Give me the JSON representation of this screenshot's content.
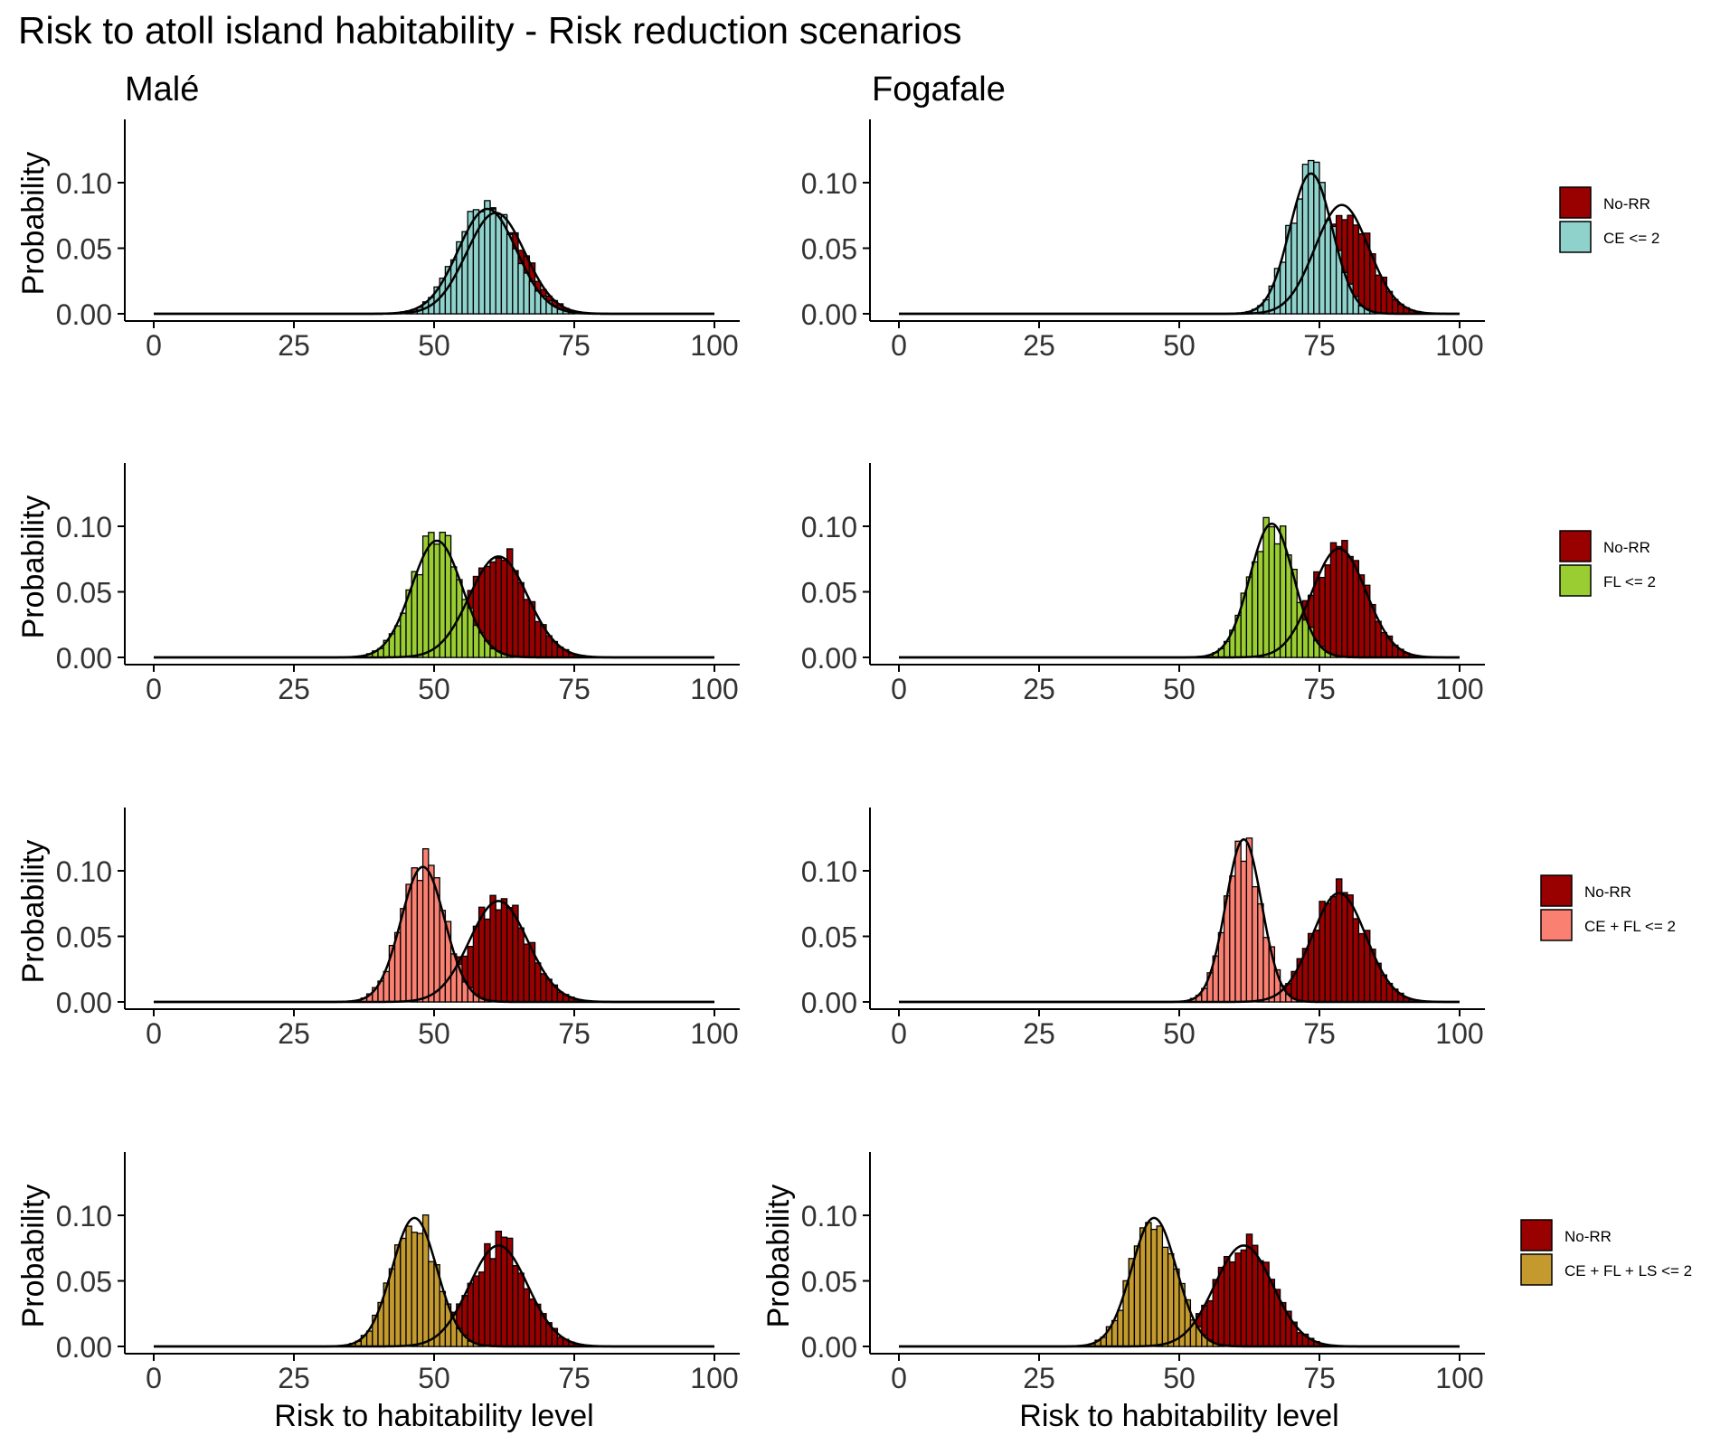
{
  "title": "Risk to atoll island habitability - Risk reduction scenarios",
  "columns": [
    "Malé",
    "Fogafale"
  ],
  "ylabel": "Probability",
  "xlabel": "Risk to habitability level",
  "colors": {
    "no_rr": "#990000",
    "ce": "#8fd1cb",
    "fl": "#9acd32",
    "ce_fl": "#fa8072",
    "ce_fl_ls": "#c49a2f",
    "curve": "#000000"
  },
  "chart_data": [
    {
      "type": "bar",
      "panel": "male-ce",
      "location": "Malé",
      "ylabel": "Probability",
      "xlabel": "",
      "x_ticks": [
        0,
        25,
        50,
        75,
        100
      ],
      "y_ticks": [
        "0.00",
        "0.05",
        "0.10"
      ],
      "xlim": [
        0,
        100
      ],
      "ylim": [
        0,
        0.15
      ],
      "legend": [
        "No-RR",
        "CE <= 2"
      ],
      "series": [
        {
          "name": "No-RR",
          "mean": 61,
          "sd": 5.2,
          "peak": 0.077
        },
        {
          "name": "CE <= 2",
          "mean": 59.5,
          "sd": 5.2,
          "peak": 0.08
        }
      ]
    },
    {
      "type": "bar",
      "panel": "foga-ce",
      "location": "Fogafale",
      "ylabel": "",
      "xlabel": "",
      "x_ticks": [
        0,
        25,
        50,
        75,
        100
      ],
      "y_ticks": [
        "0.00",
        "0.05",
        "0.10"
      ],
      "xlim": [
        0,
        100
      ],
      "ylim": [
        0,
        0.15
      ],
      "legend": [
        "No-RR",
        "CE <= 2"
      ],
      "series": [
        {
          "name": "No-RR",
          "mean": 79,
          "sd": 4.8,
          "peak": 0.083
        },
        {
          "name": "CE <= 2",
          "mean": 73.5,
          "sd": 3.8,
          "peak": 0.107
        }
      ]
    },
    {
      "type": "bar",
      "panel": "male-fl",
      "location": "Malé",
      "ylabel": "Probability",
      "xlabel": "",
      "x_ticks": [
        0,
        25,
        50,
        75,
        100
      ],
      "y_ticks": [
        "0.00",
        "0.05",
        "0.10"
      ],
      "xlim": [
        0,
        100
      ],
      "ylim": [
        0,
        0.15
      ],
      "legend": [
        "No-RR",
        "FL <= 2"
      ],
      "series": [
        {
          "name": "No-RR",
          "mean": 61.5,
          "sd": 5.2,
          "peak": 0.077
        },
        {
          "name": "FL <= 2",
          "mean": 50.5,
          "sd": 4.5,
          "peak": 0.089
        }
      ]
    },
    {
      "type": "bar",
      "panel": "foga-fl",
      "location": "Fogafale",
      "ylabel": "",
      "xlabel": "",
      "x_ticks": [
        0,
        25,
        50,
        75,
        100
      ],
      "y_ticks": [
        "0.00",
        "0.05",
        "0.10"
      ],
      "xlim": [
        0,
        100
      ],
      "ylim": [
        0,
        0.15
      ],
      "legend": [
        "No-RR",
        "FL <= 2"
      ],
      "series": [
        {
          "name": "No-RR",
          "mean": 78.5,
          "sd": 4.8,
          "peak": 0.083
        },
        {
          "name": "FL <= 2",
          "mean": 66.5,
          "sd": 3.9,
          "peak": 0.102
        }
      ]
    },
    {
      "type": "bar",
      "panel": "male-cefl",
      "location": "Malé",
      "ylabel": "Probability",
      "xlabel": "",
      "x_ticks": [
        0,
        25,
        50,
        75,
        100
      ],
      "y_ticks": [
        "0.00",
        "0.05",
        "0.10"
      ],
      "xlim": [
        0,
        100
      ],
      "ylim": [
        0,
        0.15
      ],
      "legend": [
        "No-RR",
        "CE + FL <= 2"
      ],
      "series": [
        {
          "name": "No-RR",
          "mean": 61.5,
          "sd": 5.2,
          "peak": 0.077
        },
        {
          "name": "CE + FL <= 2",
          "mean": 48,
          "sd": 3.9,
          "peak": 0.103
        }
      ]
    },
    {
      "type": "bar",
      "panel": "foga-cefl",
      "location": "Fogafale",
      "ylabel": "",
      "xlabel": "",
      "x_ticks": [
        0,
        25,
        50,
        75,
        100
      ],
      "y_ticks": [
        "0.00",
        "0.05",
        "0.10"
      ],
      "xlim": [
        0,
        100
      ],
      "ylim": [
        0,
        0.15
      ],
      "legend": [
        "No-RR",
        "CE + FL <= 2"
      ],
      "series": [
        {
          "name": "No-RR",
          "mean": 78.5,
          "sd": 4.8,
          "peak": 0.083
        },
        {
          "name": "CE + FL <= 2",
          "mean": 61.5,
          "sd": 3.2,
          "peak": 0.124
        }
      ]
    },
    {
      "type": "bar",
      "panel": "male-cefls",
      "location": "Malé",
      "ylabel": "Probability",
      "xlabel": "Risk to habitability level",
      "x_ticks": [
        0,
        25,
        50,
        75,
        100
      ],
      "y_ticks": [
        "0.00",
        "0.05",
        "0.10"
      ],
      "xlim": [
        0,
        100
      ],
      "ylim": [
        0,
        0.15
      ],
      "legend": [
        "No-RR",
        "CE + FL + LS <= 2"
      ],
      "series": [
        {
          "name": "No-RR",
          "mean": 61.5,
          "sd": 5.2,
          "peak": 0.077
        },
        {
          "name": "CE + FL + LS <= 2",
          "mean": 46.5,
          "sd": 4.0,
          "peak": 0.098
        }
      ]
    },
    {
      "type": "bar",
      "panel": "foga-cefls",
      "location": "Fogafale",
      "ylabel": "Probability",
      "xlabel": "Risk to habitability level",
      "x_ticks": [
        0,
        25,
        50,
        75,
        100
      ],
      "y_ticks": [
        "0.00",
        "0.05",
        "0.10"
      ],
      "xlim": [
        0,
        100
      ],
      "ylim": [
        0,
        0.15
      ],
      "legend": [
        "No-RR",
        "CE + FL + LS <= 2"
      ],
      "series": [
        {
          "name": "No-RR",
          "mean": 61.5,
          "sd": 5.2,
          "peak": 0.077
        },
        {
          "name": "CE + FL + LS <= 2",
          "mean": 45.5,
          "sd": 4.0,
          "peak": 0.098
        }
      ]
    }
  ]
}
